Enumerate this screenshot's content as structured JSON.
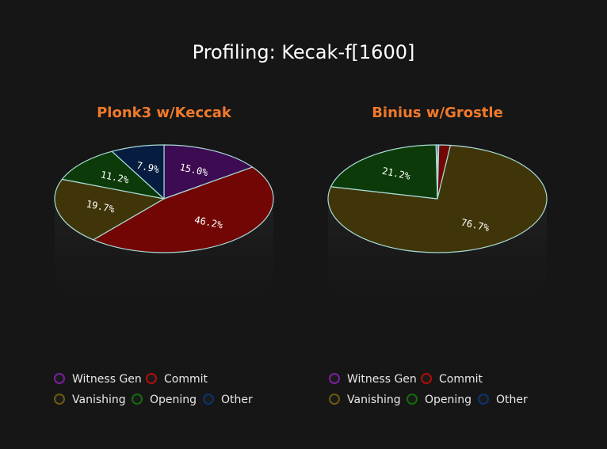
{
  "page": {
    "title": "Profiling: Kecak-f[1600]",
    "background": "#161616",
    "title_color": "#ffffff",
    "subtitle_color": "#f07a2a"
  },
  "chart_data": [
    {
      "type": "pie",
      "title": "Plonk3 w/Keccak",
      "start_angle_deg": -90,
      "direction": "clockwise",
      "series": [
        {
          "name": "Witness Gen",
          "value": 15.0,
          "label": "15.0%",
          "color": "#3d0b52"
        },
        {
          "name": "Commit",
          "value": 46.2,
          "label": "46.2%",
          "color": "#720604"
        },
        {
          "name": "Vanishing",
          "value": 19.7,
          "label": "19.7%",
          "color": "#403508"
        },
        {
          "name": "Opening",
          "value": 11.2,
          "label": "11.2%",
          "color": "#0c3a08"
        },
        {
          "name": "Other",
          "value": 7.9,
          "label": "7.9%",
          "color": "#061c40"
        }
      ],
      "legend": [
        "Witness Gen",
        "Commit",
        "Vanishing",
        "Opening",
        "Other"
      ],
      "legend_position": "bottom-left"
    },
    {
      "type": "pie",
      "title": "Binius w/Grostle",
      "start_angle_deg": -90,
      "direction": "clockwise",
      "series": [
        {
          "name": "Witness Gen",
          "value": 0.2,
          "label": "",
          "color": "#3d0b52"
        },
        {
          "name": "Commit",
          "value": 1.7,
          "label": "",
          "color": "#720604"
        },
        {
          "name": "Vanishing",
          "value": 76.7,
          "label": "76.7%",
          "color": "#403508"
        },
        {
          "name": "Opening",
          "value": 21.2,
          "label": "21.2%",
          "color": "#0c3a08"
        },
        {
          "name": "Other",
          "value": 0.2,
          "label": "",
          "color": "#061c40"
        }
      ],
      "legend": [
        "Witness Gen",
        "Commit",
        "Vanishing",
        "Opening",
        "Other"
      ],
      "legend_position": "bottom-right"
    }
  ],
  "legend_colors": {
    "Witness Gen": "#7a1fa0",
    "Commit": "#b00d0a",
    "Vanishing": "#6d5a10",
    "Opening": "#156b0c",
    "Other": "#0b3470"
  }
}
